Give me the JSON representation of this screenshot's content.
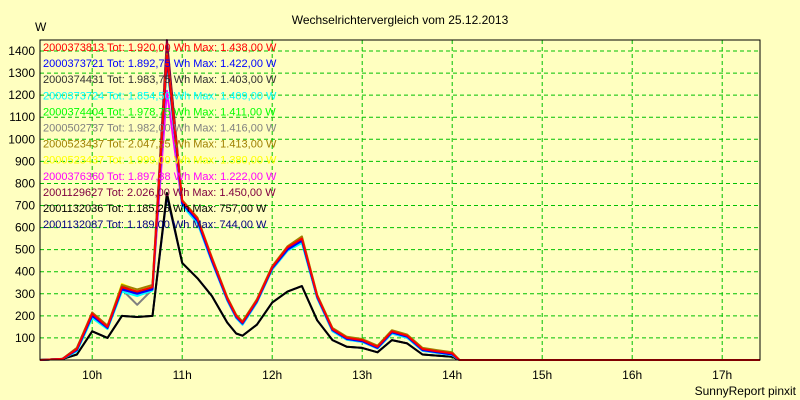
{
  "chart_data": {
    "type": "line",
    "title": "Wechselrichtervergleich vom 25.12.2013",
    "ylabel": "W",
    "xlabel": "",
    "footer": "SunnyReport pinxit",
    "x_ticks": [
      {
        "value": 10,
        "label": "10h"
      },
      {
        "value": 11,
        "label": "11h"
      },
      {
        "value": 12,
        "label": "12h"
      },
      {
        "value": 13,
        "label": "13h"
      },
      {
        "value": 14,
        "label": "14h"
      },
      {
        "value": 15,
        "label": "15h"
      },
      {
        "value": 16,
        "label": "16h"
      },
      {
        "value": 17,
        "label": "17h"
      }
    ],
    "y_ticks": [
      100,
      200,
      300,
      400,
      500,
      600,
      700,
      800,
      900,
      1000,
      1100,
      1200,
      1300,
      1400
    ],
    "xlim": [
      9.42,
      17.42
    ],
    "ylim": [
      0,
      1450
    ],
    "grid": true,
    "legend_position": "top-left",
    "x": [
      9.42,
      9.67,
      9.83,
      10.0,
      10.17,
      10.33,
      10.5,
      10.67,
      10.83,
      11.0,
      11.17,
      11.33,
      11.5,
      11.6,
      11.67,
      11.83,
      12.0,
      12.17,
      12.33,
      12.5,
      12.67,
      12.83,
      13.0,
      13.17,
      13.33,
      13.5,
      13.67,
      13.83,
      14.0,
      14.08,
      14.17,
      14.33,
      14.5,
      14.67,
      14.83,
      15.0,
      15.17,
      15.33,
      15.5,
      15.67,
      15.83,
      16.0,
      16.17,
      16.33,
      16.5,
      16.67,
      16.83,
      17.0,
      17.17,
      17.42
    ],
    "series": [
      {
        "name": "2000373813",
        "legend": "2000373813 Tot: 1.920,00 Wh Max: 1.438,00 W",
        "color": "#ff0000",
        "values": [
          0,
          5,
          50,
          210,
          150,
          330,
          310,
          330,
          1380,
          720,
          640,
          460,
          280,
          200,
          170,
          270,
          420,
          510,
          550,
          290,
          140,
          100,
          90,
          60,
          130,
          110,
          50,
          40,
          30,
          0,
          0,
          0,
          0,
          0,
          0,
          0,
          0,
          0,
          0,
          0,
          0,
          0,
          0,
          0,
          0,
          0,
          0,
          0,
          0,
          0
        ]
      },
      {
        "name": "2000373721",
        "legend": "2000373721 Tot: 1.892,75 Wh Max: 1.422,00 W",
        "color": "#0000ff",
        "values": [
          0,
          5,
          45,
          200,
          145,
          320,
          300,
          320,
          1370,
          710,
          630,
          450,
          275,
          195,
          165,
          265,
          415,
          500,
          540,
          285,
          135,
          95,
          85,
          55,
          125,
          105,
          45,
          35,
          25,
          0,
          0,
          0,
          0,
          0,
          0,
          0,
          0,
          0,
          0,
          0,
          0,
          0,
          0,
          0,
          0,
          0,
          0,
          0,
          0,
          0
        ]
      },
      {
        "name": "2000374431",
        "legend": "2000374431 Tot: 1.983,75 Wh Max: 1.403,00 W",
        "color": "#303030",
        "values": [
          0,
          5,
          50,
          205,
          148,
          325,
          305,
          325,
          1360,
          715,
          635,
          455,
          278,
          198,
          168,
          268,
          418,
          505,
          545,
          288,
          138,
          98,
          88,
          58,
          128,
          108,
          48,
          38,
          28,
          0,
          0,
          0,
          0,
          0,
          0,
          0,
          0,
          0,
          0,
          0,
          0,
          0,
          0,
          0,
          0,
          0,
          0,
          0,
          0,
          0
        ]
      },
      {
        "name": "2000373724",
        "legend": "2000373724 Tot: 1.854,50 Wh Max: 1.409,00 W",
        "color": "#00ffff",
        "values": [
          0,
          5,
          40,
          190,
          140,
          310,
          290,
          315,
          1350,
          700,
          620,
          445,
          270,
          190,
          160,
          260,
          410,
          495,
          530,
          280,
          130,
          92,
          82,
          52,
          120,
          100,
          42,
          32,
          22,
          0,
          0,
          0,
          0,
          0,
          0,
          0,
          0,
          0,
          0,
          0,
          0,
          0,
          0,
          0,
          0,
          0,
          0,
          0,
          0,
          0
        ]
      },
      {
        "name": "2000374404",
        "legend": "2000374404 Tot: 1.978,75 Wh Max: 1.411,00 W",
        "color": "#00ff00",
        "values": [
          0,
          5,
          48,
          208,
          150,
          328,
          308,
          328,
          1375,
          718,
          638,
          458,
          279,
          199,
          169,
          269,
          419,
          508,
          548,
          289,
          139,
          99,
          89,
          59,
          129,
          109,
          49,
          39,
          29,
          0,
          0,
          0,
          0,
          0,
          0,
          0,
          0,
          0,
          0,
          0,
          0,
          0,
          0,
          0,
          0,
          0,
          0,
          0,
          0,
          0
        ]
      },
      {
        "name": "2000502737",
        "legend": "2000502737 Tot: 1.982,00 Wh Max: 1.416,00 W",
        "color": "#808080",
        "values": [
          0,
          5,
          45,
          200,
          145,
          320,
          250,
          320,
          1365,
          710,
          630,
          450,
          275,
          195,
          165,
          265,
          415,
          500,
          540,
          285,
          135,
          95,
          85,
          55,
          125,
          105,
          45,
          35,
          25,
          0,
          0,
          0,
          0,
          0,
          0,
          0,
          0,
          0,
          0,
          0,
          0,
          0,
          0,
          0,
          0,
          0,
          0,
          0,
          0,
          0
        ]
      },
      {
        "name": "2000523437",
        "legend": "2000523437 Tot: 2.047,25 Wh Max: 1.413,00 W",
        "color": "#a08000",
        "values": [
          0,
          5,
          55,
          215,
          155,
          340,
          320,
          340,
          1385,
          725,
          645,
          465,
          285,
          205,
          175,
          275,
          425,
          515,
          560,
          295,
          145,
          105,
          95,
          65,
          135,
          115,
          55,
          45,
          35,
          0,
          0,
          0,
          0,
          0,
          0,
          0,
          0,
          0,
          0,
          0,
          0,
          0,
          0,
          0,
          0,
          0,
          0,
          0,
          0,
          0
        ]
      },
      {
        "name": "2000523437",
        "legend": "2000523437 Tot: 1.999,00 Wh Max: 1.380,00 W",
        "color": "#ffff00",
        "values": [
          0,
          5,
          52,
          212,
          152,
          345,
          315,
          335,
          1380,
          720,
          640,
          460,
          282,
          202,
          172,
          272,
          422,
          512,
          552,
          292,
          142,
          102,
          92,
          62,
          132,
          112,
          52,
          42,
          32,
          0,
          0,
          0,
          0,
          0,
          0,
          0,
          0,
          0,
          0,
          0,
          0,
          0,
          0,
          0,
          0,
          0,
          0,
          0,
          0,
          0
        ]
      },
      {
        "name": "2000376360",
        "legend": "2000376360 Tot: 1.897,38 Wh Max: 1.222,00 W",
        "color": "#ff00ff",
        "values": [
          0,
          5,
          45,
          200,
          145,
          320,
          300,
          320,
          1220,
          700,
          620,
          445,
          270,
          190,
          160,
          260,
          410,
          495,
          535,
          280,
          130,
          92,
          82,
          52,
          120,
          100,
          42,
          32,
          22,
          0,
          0,
          0,
          0,
          0,
          0,
          0,
          0,
          0,
          0,
          0,
          0,
          0,
          0,
          0,
          0,
          0,
          0,
          0,
          0,
          0
        ]
      },
      {
        "name": "2001129627",
        "legend": "2001129627 Tot: 2.026,00 Wh Max: 1.450,00 W",
        "color": "#800040",
        "values": [
          0,
          5,
          55,
          215,
          155,
          335,
          315,
          335,
          1450,
          720,
          640,
          460,
          282,
          202,
          172,
          272,
          422,
          512,
          555,
          292,
          142,
          102,
          92,
          62,
          132,
          112,
          52,
          42,
          32,
          0,
          0,
          0,
          0,
          0,
          0,
          0,
          0,
          0,
          0,
          0,
          0,
          0,
          0,
          0,
          0,
          0,
          0,
          0,
          0,
          0
        ]
      },
      {
        "name": "2001132036",
        "legend": "2001132036 Tot: 1.185,25 Wh Max: 757,00 W",
        "color": "#000000",
        "values": [
          0,
          5,
          25,
          130,
          100,
          200,
          195,
          200,
          757,
          440,
          370,
          290,
          170,
          120,
          110,
          160,
          260,
          310,
          335,
          180,
          90,
          60,
          55,
          35,
          90,
          75,
          25,
          20,
          15,
          0,
          0,
          0,
          0,
          0,
          0,
          0,
          0,
          0,
          0,
          0,
          0,
          0,
          0,
          0,
          0,
          0,
          0,
          0,
          0,
          0
        ]
      },
      {
        "name": "2001132087",
        "legend": "2001132087 Tot: 1.189,00 Wh Max: 744,00 W",
        "color": "#000080",
        "values": [
          0,
          5,
          25,
          130,
          100,
          200,
          195,
          200,
          744,
          440,
          370,
          290,
          170,
          120,
          110,
          160,
          260,
          310,
          335,
          180,
          90,
          60,
          55,
          35,
          90,
          75,
          25,
          20,
          15,
          0,
          0,
          0,
          0,
          0,
          0,
          0,
          0,
          0,
          0,
          0,
          0,
          0,
          0,
          0,
          0,
          0,
          0,
          0,
          0,
          0
        ]
      }
    ]
  },
  "colors": {
    "background": "#ffffc0",
    "plot_background": "#ffffc0",
    "grid": "#00c000",
    "axis": "#000000"
  }
}
